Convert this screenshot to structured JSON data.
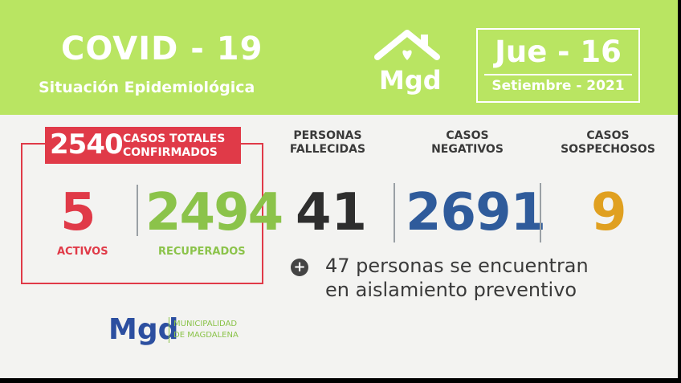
{
  "header": {
    "title": "COVID - 19",
    "subtitle": "Situación Epidemiológica",
    "logo_text": "Mgd",
    "date_main": "Jue - 16",
    "date_sub": "Setiembre - 2021"
  },
  "totals": {
    "value": "2540",
    "label_line1": "CASOS TOTALES",
    "label_line2": "CONFIRMADOS",
    "active_value": "5",
    "active_label": "ACTIVOS",
    "recovered_value": "2494",
    "recovered_label": "RECUPERADOS"
  },
  "stats": {
    "deaths_label_1": "PERSONAS",
    "deaths_label_2": "FALLECIDAS",
    "deaths_value": "41",
    "negative_label_1": "CASOS",
    "negative_label_2": "NEGATIVOS",
    "negative_value": "2691",
    "suspected_label_1": "CASOS",
    "suspected_label_2": "SOSPECHOSOS",
    "suspected_value": "9"
  },
  "note": {
    "line1": "47 personas se encuentran",
    "line2": "en aislamiento preventivo"
  },
  "footer": {
    "logo_text": "Mgd",
    "line1": "MUNICIPALIDAD",
    "line2": "DE MAGDALENA"
  },
  "colors": {
    "header_green": "#b9e562",
    "red": "#e03a48",
    "green": "#8bc34a",
    "blue": "#2f5b9b",
    "orange": "#e0a020",
    "dark": "#2e2e2e"
  }
}
